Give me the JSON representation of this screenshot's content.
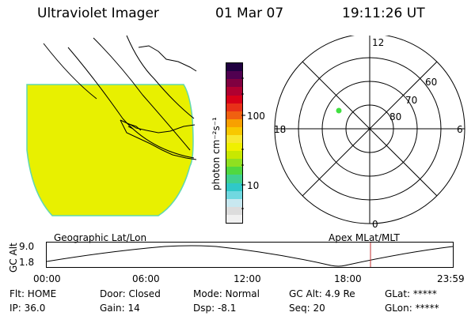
{
  "header": {
    "instrument": "Ultraviolet Imager",
    "date": "01 Mar 07",
    "time": "19:11:26 UT"
  },
  "colorbar": {
    "unit_label": "photon cm⁻²s⁻¹",
    "tick_100": "100",
    "tick_10": "10",
    "colors": [
      "#f0f0f0",
      "#dcdcdc",
      "#c8e8f0",
      "#70d8e0",
      "#30c8c8",
      "#40d090",
      "#50d840",
      "#90e020",
      "#c8e800",
      "#f0f000",
      "#f8e830",
      "#f8c800",
      "#f8a000",
      "#f06010",
      "#e83018",
      "#d80018",
      "#b00030",
      "#800040",
      "#500050",
      "#200040"
    ]
  },
  "polar_plot": {
    "mlt_12": "12",
    "mlt_18": "18",
    "mlt_6": "6",
    "mlt_0": "0",
    "lat_60": "60",
    "lat_70": "70",
    "lat_80": "80",
    "marker_color": "#40e040"
  },
  "map": {
    "fill_color": "#e8f000",
    "edge_color": "#60d8b0"
  },
  "timeline": {
    "left_title": "Geographic Lat/Lon",
    "right_title": "Apex MLat/MLT",
    "axis_label": "GC Alt",
    "y_top": "9.0",
    "y_bottom": "1.8",
    "ticks": [
      "00:00",
      "06:00",
      "12:00",
      "18:00",
      "23:59"
    ],
    "cursor_color": "#c03030"
  },
  "status": {
    "flt": "Flt: HOME",
    "ip": "IP: 36.0",
    "door": "Door: Closed",
    "gain": "Gain: 14",
    "mode": "Mode: Normal",
    "dsp": "Dsp:   -8.1",
    "gc_alt": "GC Alt: 4.9 Re",
    "seq": "Seq: 20",
    "glat": "GLat: *****",
    "glon": "GLon: *****"
  }
}
